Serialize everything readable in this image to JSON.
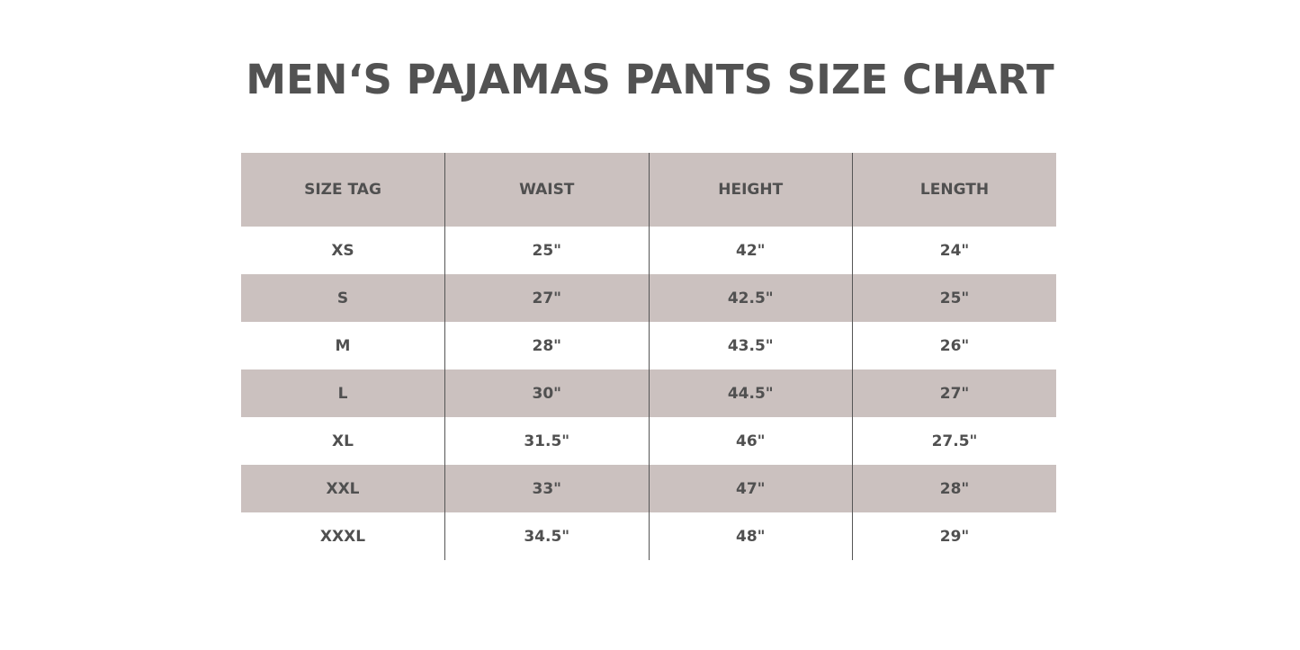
{
  "title": "MEN‘S PAJAMAS PANTS SIZE CHART",
  "colors": {
    "header_bg": "#cbc1bf",
    "text": "#505050",
    "row_alt_bg": "#cbc1bf"
  },
  "chart_data": {
    "type": "table",
    "title": "MEN‘S PAJAMAS PANTS SIZE CHART",
    "columns": [
      "SIZE TAG",
      "WAIST",
      "HEIGHT",
      "LENGTH"
    ],
    "rows": [
      [
        "XS",
        "25\"",
        "42\"",
        "24\""
      ],
      [
        "S",
        "27\"",
        "42.5\"",
        "25\""
      ],
      [
        "M",
        "28\"",
        "43.5\"",
        "26\""
      ],
      [
        "L",
        "30\"",
        "44.5\"",
        "27\""
      ],
      [
        "XL",
        "31.5\"",
        "46\"",
        "27.5\""
      ],
      [
        "XXL",
        "33\"",
        "47\"",
        "28\""
      ],
      [
        "XXXL",
        "34.5\"",
        "48\"",
        "29\""
      ]
    ]
  }
}
